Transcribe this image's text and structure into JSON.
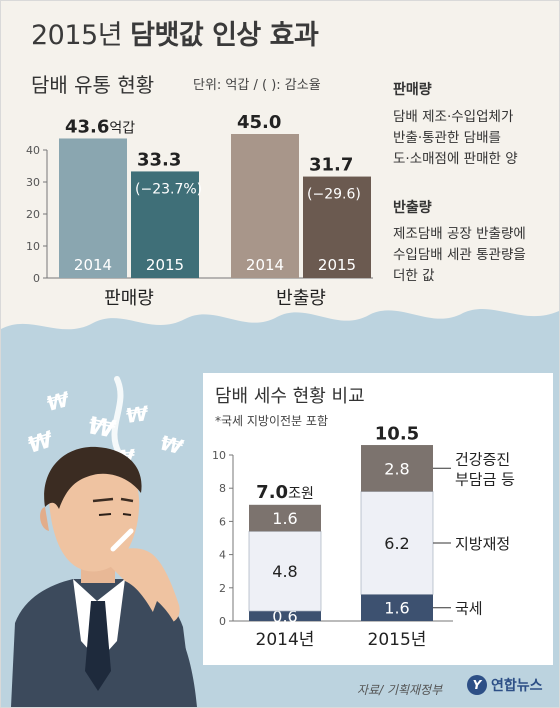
{
  "title": {
    "year": "2015년",
    "rest": "담뱃값 인상 효과"
  },
  "section1": {
    "title": "담배 유통 현황",
    "unit_note": "단위: 억갑 / ( ): 감소율"
  },
  "definitions": [
    {
      "heading": "판매량",
      "lines": [
        "담배 제조·수입업체가",
        "반출·통관한 담배를",
        "도·소매점에 판매한 양"
      ]
    },
    {
      "heading": "반출량",
      "lines": [
        "제조담배 공장 반출량에",
        "수입담배 세관 통관량을",
        "더한 값"
      ]
    }
  ],
  "section2": {
    "title": "담배 세수 현황 비교",
    "footnote": "*국세 지방이전분 포함"
  },
  "source": "자료/ 기획재정부",
  "logo": {
    "mark": "Y",
    "text": "연합뉴스"
  },
  "colors": {
    "sales_2014": "#8aa6b0",
    "sales_2015": "#3f6f78",
    "ship_2014": "#a8968a",
    "ship_2015": "#6b5a50",
    "seg_national": "#3d5170",
    "seg_local": "#eef0f6",
    "seg_health": "#7c736e",
    "sky": "#bcd3df"
  },
  "chart_data": [
    {
      "type": "bar",
      "title": "담배 유통 현황",
      "unit": "억갑",
      "ylim": [
        0,
        45
      ],
      "yticks": [
        0,
        10,
        20,
        30,
        40
      ],
      "grid": false,
      "groups": [
        {
          "label": "판매량",
          "bars": [
            {
              "year": "2014",
              "value": 43.6,
              "value_label": "43.6",
              "value_unit": "억갑",
              "change": ""
            },
            {
              "year": "2015",
              "value": 33.3,
              "value_label": "33.3",
              "value_unit": "",
              "change": "(−23.7%)"
            }
          ]
        },
        {
          "label": "반출량",
          "bars": [
            {
              "year": "2014",
              "value": 45.0,
              "value_label": "45.0",
              "value_unit": "",
              "change": ""
            },
            {
              "year": "2015",
              "value": 31.7,
              "value_label": "31.7",
              "value_unit": "",
              "change": "(−29.6)"
            }
          ]
        }
      ]
    },
    {
      "type": "bar",
      "stacked": true,
      "title": "담배 세수 현황 비교",
      "unit": "조원",
      "ylim": [
        0,
        10.5
      ],
      "yticks": [
        0,
        2,
        4,
        6,
        8,
        10
      ],
      "categories": [
        "2014년",
        "2015년"
      ],
      "totals": [
        {
          "value": 7.0,
          "label": "7.0",
          "unit": "조원"
        },
        {
          "value": 10.5,
          "label": "10.5",
          "unit": ""
        }
      ],
      "series": [
        {
          "name": "국세",
          "values": [
            0.6,
            1.6
          ],
          "labels": [
            "0.6",
            "1.6"
          ]
        },
        {
          "name": "지방재정",
          "values": [
            4.8,
            6.2
          ],
          "labels": [
            "4.8",
            "6.2"
          ]
        },
        {
          "name": "건강증진 부담금 등",
          "name_lines": [
            "건강증진",
            "부담금 등"
          ],
          "values": [
            1.6,
            2.8
          ],
          "labels": [
            "1.6",
            "2.8"
          ]
        }
      ]
    }
  ]
}
